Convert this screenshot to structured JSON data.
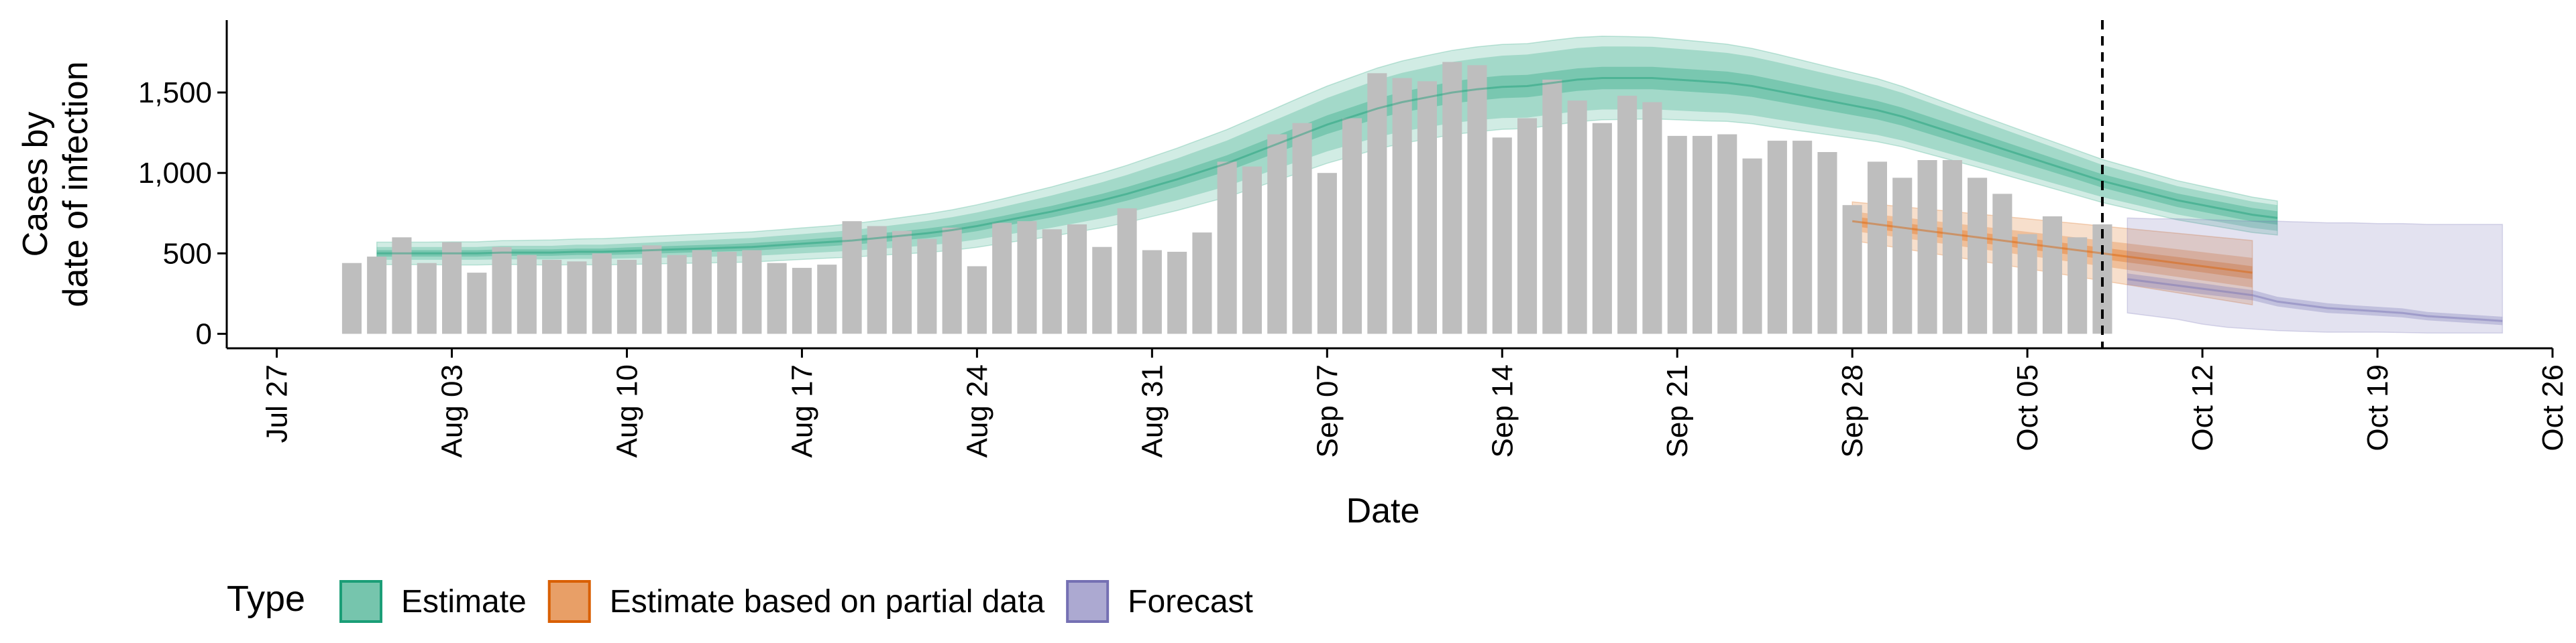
{
  "chart_data": {
    "type": "bar",
    "xlabel": "Date",
    "ylabel_lines": [
      "Cases by",
      "date of infection"
    ],
    "yticks": [
      0,
      500,
      1000,
      1500
    ],
    "ytick_labels": [
      "0",
      "500",
      "1,000",
      "1,500"
    ],
    "ylim": [
      -90,
      1950
    ],
    "xlim": [
      "2020-07-25",
      "2020-10-26"
    ],
    "xticks": [
      "2020-07-27",
      "2020-08-03",
      "2020-08-10",
      "2020-08-17",
      "2020-08-24",
      "2020-08-31",
      "2020-09-07",
      "2020-09-14",
      "2020-09-21",
      "2020-09-28",
      "2020-10-05",
      "2020-10-12",
      "2020-10-19",
      "2020-10-26"
    ],
    "xtick_labels": [
      "Jul 27",
      "Aug 03",
      "Aug 10",
      "Aug 17",
      "Aug 24",
      "Aug 31",
      "Sep 07",
      "Sep 14",
      "Sep 21",
      "Sep 28",
      "Oct 05",
      "Oct 12",
      "Oct 19",
      "Oct 26"
    ],
    "cutoff_date": "2020-10-08",
    "bars": {
      "start_date": "2020-07-30",
      "color": "#bebebe",
      "values": [
        440,
        480,
        600,
        440,
        570,
        380,
        540,
        490,
        460,
        450,
        500,
        460,
        550,
        490,
        520,
        510,
        520,
        440,
        410,
        430,
        700,
        670,
        640,
        590,
        660,
        420,
        690,
        700,
        650,
        680,
        540,
        780,
        520,
        510,
        630,
        1070,
        1040,
        1240,
        1310,
        1000,
        1340,
        1620,
        1590,
        1570,
        1690,
        1670,
        1220,
        1340,
        1580,
        1450,
        1310,
        1480,
        1440,
        1230,
        1230,
        1240,
        1090,
        1200,
        1200,
        1130,
        800,
        1070,
        970,
        1080,
        1080,
        970,
        870,
        620,
        730,
        600,
        680
      ]
    },
    "series": [
      {
        "name": "Estimate",
        "color": "#1b9e77",
        "start_date": "2020-07-31",
        "median": [
          500,
          500,
          500,
          500,
          500,
          505,
          505,
          505,
          510,
          510,
          515,
          520,
          525,
          530,
          535,
          540,
          550,
          560,
          570,
          580,
          595,
          610,
          625,
          645,
          670,
          700,
          730,
          760,
          795,
          830,
          870,
          915,
          960,
          1010,
          1060,
          1120,
          1180,
          1240,
          1300,
          1350,
          1400,
          1440,
          1470,
          1500,
          1520,
          1535,
          1540,
          1560,
          1580,
          1590,
          1590,
          1590,
          1580,
          1570,
          1560,
          1540,
          1510,
          1480,
          1450,
          1420,
          1390,
          1350,
          1300,
          1250,
          1200,
          1150,
          1100,
          1050,
          1000,
          950,
          910,
          870,
          830,
          800,
          770,
          740,
          720
        ],
        "inner_half": [
          20,
          20,
          20,
          20,
          20,
          20,
          20,
          20,
          20,
          20,
          22,
          22,
          22,
          22,
          22,
          24,
          24,
          24,
          26,
          26,
          28,
          28,
          30,
          30,
          32,
          32,
          34,
          36,
          38,
          40,
          42,
          44,
          46,
          48,
          50,
          52,
          54,
          56,
          58,
          60,
          62,
          64,
          66,
          68,
          70,
          70,
          70,
          70,
          70,
          70,
          70,
          70,
          70,
          70,
          70,
          68,
          66,
          64,
          62,
          60,
          58,
          56,
          54,
          52,
          50,
          48,
          46,
          44,
          42,
          42,
          42,
          42,
          42,
          42,
          42,
          42,
          42
        ],
        "mid_half": [
          40,
          40,
          40,
          40,
          40,
          42,
          42,
          42,
          44,
          44,
          46,
          48,
          50,
          52,
          54,
          56,
          58,
          60,
          62,
          64,
          68,
          72,
          76,
          80,
          84,
          88,
          94,
          100,
          106,
          112,
          118,
          124,
          130,
          136,
          142,
          148,
          154,
          160,
          166,
          172,
          178,
          182,
          186,
          190,
          192,
          194,
          196,
          196,
          196,
          196,
          196,
          194,
          192,
          190,
          186,
          182,
          178,
          172,
          166,
          160,
          154,
          148,
          142,
          136,
          130,
          124,
          118,
          112,
          106,
          100,
          96,
          92,
          88,
          86,
          84,
          82,
          80
        ],
        "outer_half": [
          70,
          70,
          70,
          72,
          72,
          74,
          76,
          78,
          80,
          82,
          84,
          86,
          88,
          90,
          92,
          94,
          96,
          98,
          100,
          104,
          108,
          114,
          120,
          126,
          132,
          138,
          146,
          154,
          162,
          170,
          178,
          186,
          194,
          202,
          210,
          218,
          226,
          234,
          240,
          246,
          252,
          256,
          260,
          262,
          264,
          264,
          264,
          264,
          262,
          260,
          258,
          254,
          250,
          246,
          240,
          234,
          228,
          220,
          212,
          204,
          196,
          188,
          180,
          172,
          164,
          158,
          152,
          146,
          140,
          134,
          130,
          126,
          122,
          118,
          114,
          110,
          106
        ]
      },
      {
        "name": "Estimate based on partial data",
        "color": "#d95f02",
        "start_date": "2020-09-28",
        "median": [
          700,
          680,
          660,
          640,
          620,
          600,
          580,
          560,
          540,
          520,
          500,
          480,
          460,
          440,
          420,
          400,
          380
        ],
        "inner_half": [
          30,
          30,
          30,
          30,
          32,
          32,
          32,
          34,
          34,
          34,
          36,
          36,
          36,
          38,
          38,
          40,
          40
        ],
        "mid_half": [
          60,
          62,
          64,
          66,
          68,
          70,
          72,
          74,
          76,
          78,
          80,
          82,
          84,
          86,
          88,
          90,
          92
        ],
        "outer_half": [
          120,
          125,
          130,
          135,
          140,
          145,
          150,
          155,
          160,
          165,
          170,
          175,
          180,
          185,
          190,
          195,
          200
        ]
      },
      {
        "name": "Forecast",
        "color": "#7570b3",
        "start_date": "2020-10-09",
        "median": [
          340,
          320,
          300,
          280,
          260,
          240,
          200,
          180,
          160,
          150,
          140,
          130,
          110,
          100,
          90,
          80
        ],
        "inner_half": [
          35,
          35,
          34,
          34,
          32,
          32,
          30,
          30,
          30,
          28,
          28,
          28,
          26,
          26,
          26,
          26
        ],
        "outer_lo": [
          130,
          110,
          90,
          60,
          40,
          30,
          20,
          15,
          10,
          10,
          10,
          8,
          5,
          5,
          5,
          5
        ],
        "outer_hi": [
          720,
          715,
          715,
          710,
          705,
          700,
          700,
          695,
          690,
          690,
          685,
          685,
          680,
          680,
          680,
          680
        ]
      }
    ],
    "legend": {
      "title": "Type",
      "position": "bottom-left",
      "items": [
        "Estimate",
        "Estimate based on partial data",
        "Forecast"
      ]
    }
  }
}
